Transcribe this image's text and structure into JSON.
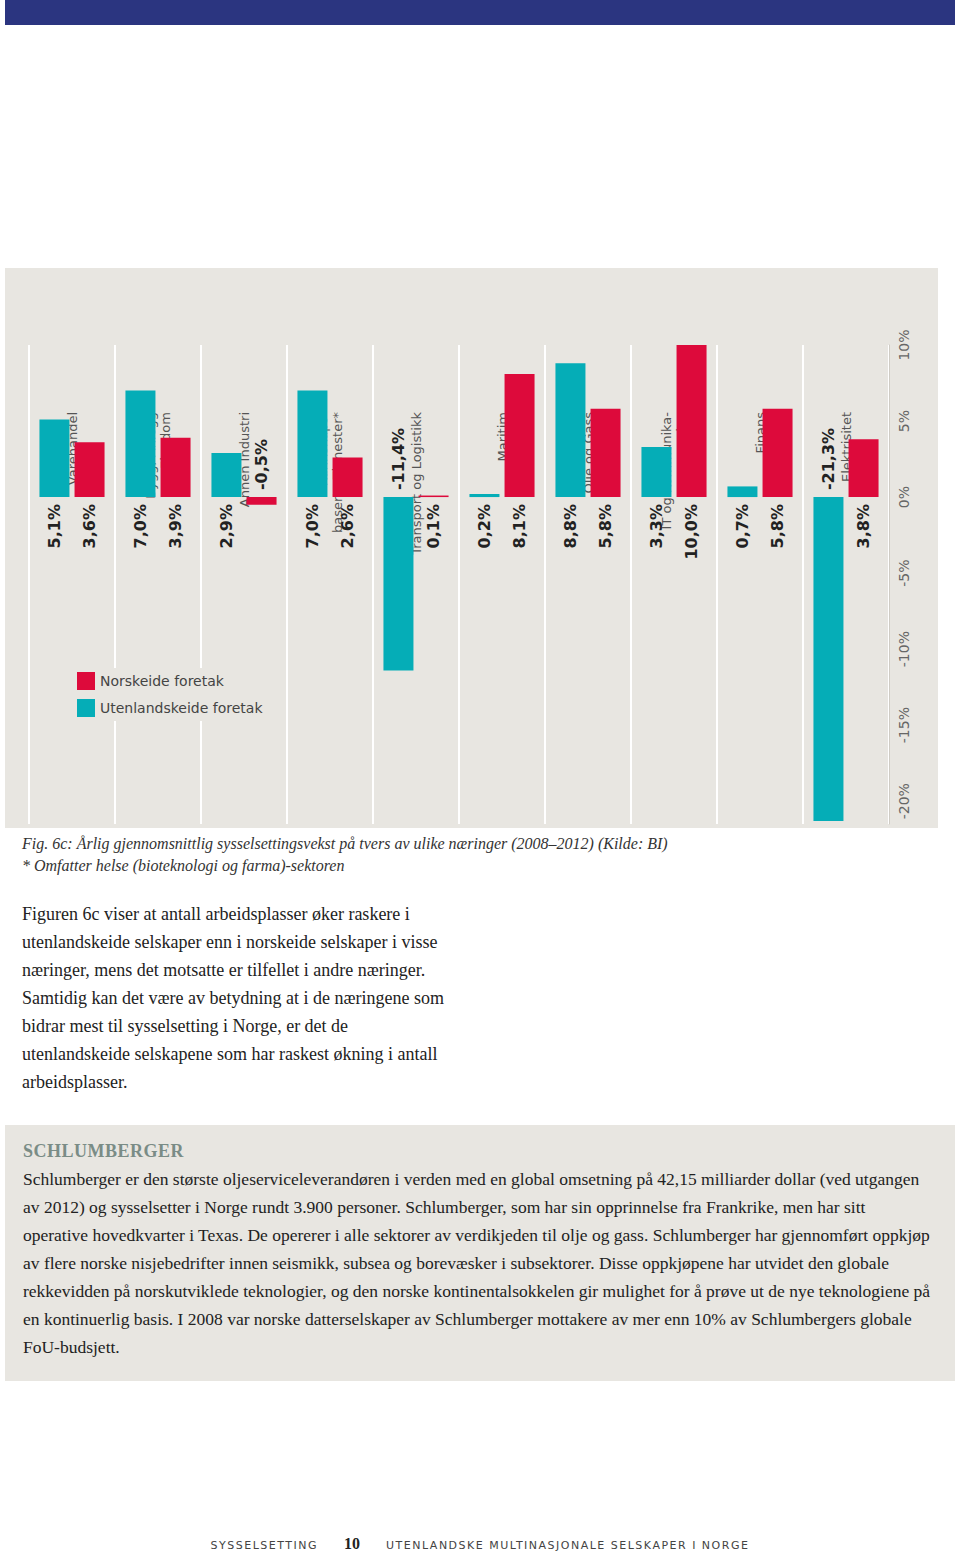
{
  "chart_data": {
    "type": "bar",
    "title": "Fig. 6c: Årlig gjennomsnittlig sysselsettingsvekst på tvers av ulike næringer (2008–2012) (Kilde: BI)",
    "notes": [
      "* Omfatter helse (bioteknologi og farma)-sektoren"
    ],
    "categories": [
      "Varehandel",
      "Bygg, Anlegg\nog Eiendom",
      "Annen Industri",
      "Kunnskaps-\nbaserte Tjenester*",
      "Transport og Logistikk",
      "Maritim",
      "Olje og Gass",
      "IT og Kommunika-\nsjon",
      "Finans",
      "Elektrisitet"
    ],
    "series": [
      {
        "name": "Utenlandskeide foretak",
        "color": "#05adb7",
        "values": [
          5.1,
          7.0,
          2.9,
          7.0,
          -11.4,
          0.2,
          8.8,
          3.3,
          0.7,
          -21.3
        ],
        "value_labels": [
          "5,1%",
          "7,0%",
          "2,9%",
          "7,0%",
          "-11,4%",
          "0,2%",
          "8,8%",
          "3,3%",
          "0,7%",
          "-21,3%"
        ]
      },
      {
        "name": "Norskeide foretak",
        "color": "#dd0a3b",
        "values": [
          3.6,
          3.9,
          -0.5,
          2.6,
          0.1,
          8.1,
          5.8,
          10.0,
          5.8,
          3.8
        ],
        "value_labels": [
          "3,6%",
          "3,9%",
          "-0,5%",
          "2,6%",
          "0,1%",
          "8,1%",
          "5,8%",
          "10,0%",
          "5,8%",
          "3,8%"
        ]
      }
    ],
    "ylim": [
      -21.5,
      10
    ],
    "yticks": [
      {
        "value": -20,
        "label": "-20%"
      },
      {
        "value": -15,
        "label": "-15%"
      },
      {
        "value": -10,
        "label": "-10%"
      },
      {
        "value": -5,
        "label": "-5%"
      },
      {
        "value": 0,
        "label": "0%"
      },
      {
        "value": 5,
        "label": "5%"
      },
      {
        "value": 10,
        "label": "10%"
      }
    ],
    "grid": true,
    "legend": "left",
    "data_labels": true
  },
  "page": {
    "paragraph": "Figuren 6c viser at antall arbeidsplasser øker raskere i utenlandskeide selskaper enn i norskeide selskaper i visse næringer, mens det motsatte er tilfellet i andre næringer. Samtidig kan det være av betydning at i de næringene som bidrar mest til sysselsetting i Norge, er det de utenlandskeide selskapene som har raskest økning i antall arbeidsplasser.",
    "box": {
      "heading": "SCHLUMBERGER",
      "text": "Schlumberger er den største oljeserviceleverandøren i verden med en global omsetning på 42,15 milliarder dollar (ved utgangen av 2012) og sysselsetter i Norge rundt 3.900 personer. Schlumberger, som har sin opprinnelse fra Frankrike, men har sitt operative hovedkvarter i Texas. De opererer i alle sektorer av verdikjeden til olje og gass. Schlumberger har gjennomført oppkjøp av flere norske nisjebedrifter innen seismikk, subsea og borevæsker i subsektorer. Disse oppkjøpene har utvidet den globale rekkevidden på norskutviklede teknologier, og den norske kontinentalsokkelen gir mulighet for å prøve ut de nye teknologiene på en kontinuerlig basis. I 2008 var norske datterselskaper av Schlumberger mottakere av mer enn 10% av Schlumbergers globale FoU-budsjett."
    },
    "footer": {
      "left": "SYSSELSETTING",
      "page_number": "10",
      "right": "UTENLANDSKE MULTINASJONALE SELSKAPER I NORGE"
    }
  }
}
